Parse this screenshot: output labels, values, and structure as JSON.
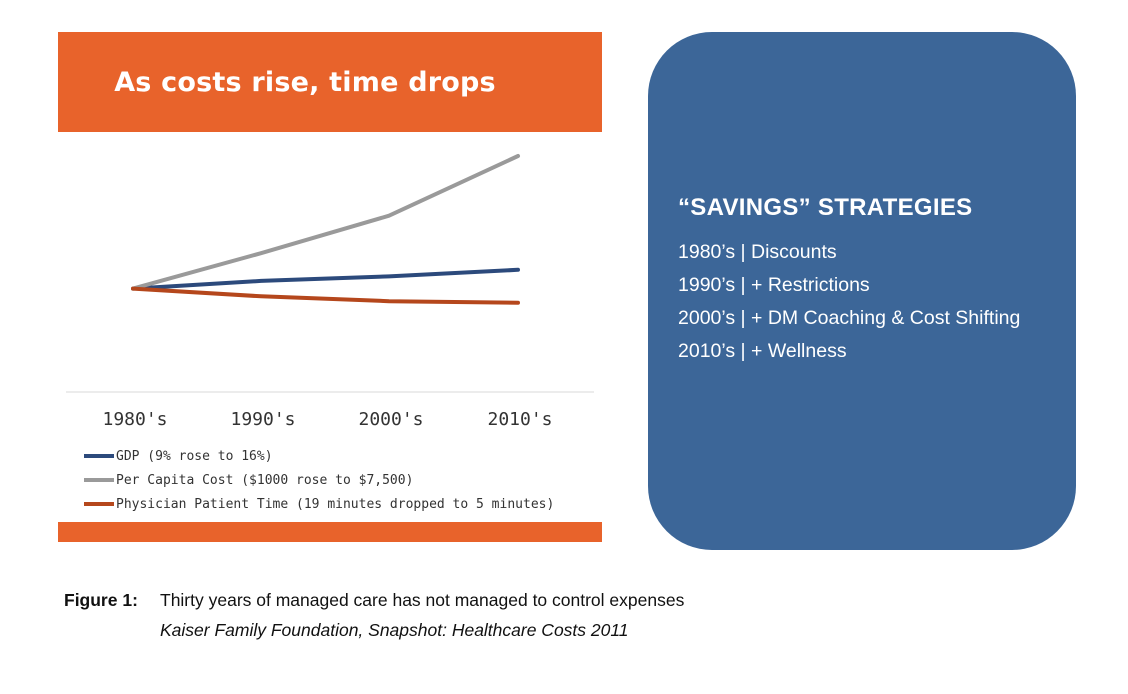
{
  "chart_data": {
    "type": "line",
    "title": "As costs rise, time drops",
    "categories": [
      "1980's",
      "1990's",
      "2000's",
      "2010's"
    ],
    "ylim": [
      0,
      100
    ],
    "grid": false,
    "legend_position": "bottom-left",
    "series": [
      {
        "name": "GDP (9% rose to 16%)",
        "color": "#2c4a7c",
        "values": [
          40,
          43.5,
          45.5,
          48.5
        ]
      },
      {
        "name": "Per Capita Cost ($1000 rose to $7,500)",
        "color": "#9a9a9a",
        "values": [
          40,
          56,
          73,
          100
        ]
      },
      {
        "name": "Physician Patient Time (19 minutes dropped to 5 minutes)",
        "color": "#b5471c",
        "values": [
          40,
          36.5,
          34.3,
          33.6
        ]
      }
    ]
  },
  "savings": {
    "title": "“SAVINGS” STRATEGIES",
    "items": [
      "1980’s | Discounts",
      "1990’s | + Restrictions",
      "2000’s | + DM Coaching & Cost Shifting",
      "2010’s | + Wellness"
    ]
  },
  "caption": {
    "label": "Figure 1:",
    "text": "Thirty years of managed care has not managed to control expenses",
    "source": "Kaiser Family Foundation, Snapshot: Healthcare Costs 2011"
  },
  "colors": {
    "accent_orange": "#e8632b",
    "box_blue": "#3c6698"
  }
}
